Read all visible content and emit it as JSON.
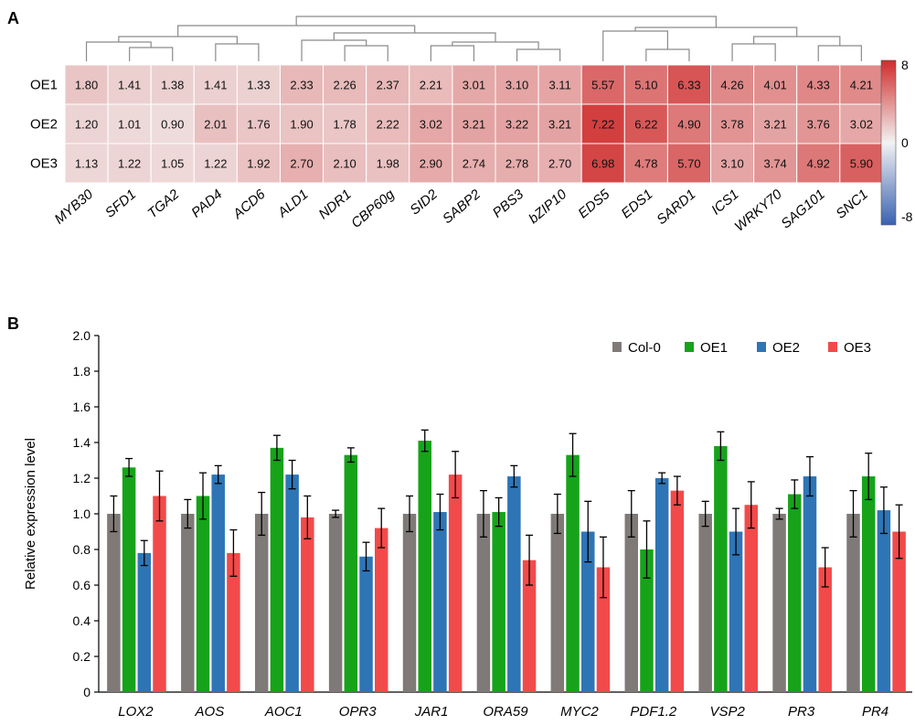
{
  "panels": {
    "a_letter": "A",
    "b_letter": "B"
  },
  "chart_data": [
    {
      "type": "heatmap",
      "rows": [
        "OE1",
        "OE2",
        "OE3"
      ],
      "columns": [
        "MYB30",
        "SFD1",
        "TGA2",
        "PAD4",
        "ACD6",
        "ALD1",
        "NDR1",
        "CBP60g",
        "SID2",
        "SABP2",
        "PBS3",
        "bZIP10",
        "EDS5",
        "EDS1",
        "SARD1",
        "ICS1",
        "WRKY70",
        "SAG101",
        "SNC1"
      ],
      "values": [
        [
          "1.80",
          "1.41",
          "1.38",
          "1.41",
          "1.33",
          "2.33",
          "2.26",
          "2.37",
          "2.21",
          "3.01",
          "3.10",
          "3.11",
          "5.57",
          "5.10",
          "6.33",
          "4.26",
          "4.01",
          "4.33",
          "4.21"
        ],
        [
          "1.20",
          "1.01",
          "0.90",
          "2.01",
          "1.76",
          "1.90",
          "1.78",
          "2.22",
          "3.02",
          "3.21",
          "3.22",
          "3.21",
          "7.22",
          "6.22",
          "4.90",
          "3.78",
          "3.21",
          "3.76",
          "3.02"
        ],
        [
          "1.13",
          "1.22",
          "1.05",
          "1.22",
          "1.92",
          "2.70",
          "2.10",
          "1.98",
          "2.90",
          "2.74",
          "2.78",
          "2.70",
          "6.98",
          "4.78",
          "5.70",
          "3.10",
          "3.74",
          "4.92",
          "5.90"
        ]
      ],
      "color_scale": {
        "min": -8,
        "mid": 0,
        "max": 8,
        "min_color": "#3a62b0",
        "mid_color": "#f2f2f2",
        "max_color": "#d02c2c",
        "tick_labels": [
          "8",
          "0",
          "-8"
        ]
      },
      "dendrogram": "top"
    },
    {
      "type": "bar",
      "categories": [
        "LOX2",
        "AOS",
        "AOC1",
        "OPR3",
        "JAR1",
        "ORA59",
        "MYC2",
        "PDF1.2",
        "VSP2",
        "PR3",
        "PR4"
      ],
      "series": [
        {
          "name": "Col-0",
          "color": "#7f7a78",
          "values": [
            1.0,
            1.0,
            1.0,
            1.0,
            1.0,
            1.0,
            1.0,
            1.0,
            1.0,
            1.0,
            1.0
          ],
          "errors": [
            0.1,
            0.08,
            0.12,
            0.02,
            0.1,
            0.13,
            0.11,
            0.13,
            0.07,
            0.03,
            0.13
          ]
        },
        {
          "name": "OE1",
          "color": "#16a31a",
          "values": [
            1.26,
            1.1,
            1.37,
            1.33,
            1.41,
            1.01,
            1.33,
            0.8,
            1.38,
            1.11,
            1.21
          ],
          "errors": [
            0.05,
            0.13,
            0.07,
            0.04,
            0.06,
            0.08,
            0.12,
            0.16,
            0.08,
            0.08,
            0.13
          ]
        },
        {
          "name": "OE2",
          "color": "#2e75b6",
          "values": [
            0.78,
            1.22,
            1.22,
            0.76,
            1.01,
            1.21,
            0.9,
            1.2,
            0.9,
            1.21,
            1.02
          ],
          "errors": [
            0.07,
            0.05,
            0.08,
            0.08,
            0.1,
            0.06,
            0.17,
            0.03,
            0.13,
            0.11,
            0.13
          ]
        },
        {
          "name": "OE3",
          "color": "#f24a4a",
          "values": [
            1.1,
            0.78,
            0.98,
            0.92,
            1.22,
            0.74,
            0.7,
            1.13,
            1.05,
            0.7,
            0.9
          ],
          "errors": [
            0.14,
            0.13,
            0.12,
            0.11,
            0.13,
            0.14,
            0.17,
            0.08,
            0.13,
            0.11,
            0.15
          ]
        }
      ],
      "ylabel": "Relative expression level",
      "ylim": [
        0,
        2.0
      ],
      "ytick_step": 0.2,
      "ytick_labels": [
        "0",
        "0.2",
        "0.4",
        "0.6",
        "0.8",
        "1.0",
        "1.2",
        "1.4",
        "1.6",
        "1.8",
        "2.0"
      ],
      "legend": "top-right",
      "grid": false
    }
  ]
}
